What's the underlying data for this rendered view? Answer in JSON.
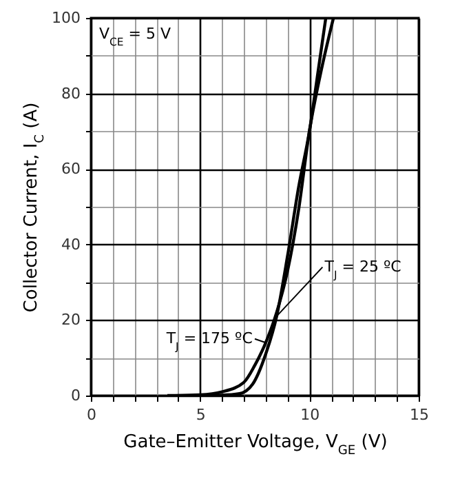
{
  "chart_data": {
    "type": "line",
    "xlabel": "Gate–Emitter Voltage, V$_{GE}$ (V)",
    "ylabel": "Collector Current, I$_{C}$ (A)",
    "series": [
      {
        "name": "T$_{J}$ = 175 ºC",
        "color": "#000000",
        "x": [
          3.5,
          5,
          6,
          7,
          7.5,
          8,
          8.5,
          9,
          9.5,
          10,
          10.5,
          11.1
        ],
        "values": [
          0,
          0.2,
          1,
          3.5,
          8,
          14,
          22,
          33,
          49,
          70,
          85,
          100
        ]
      },
      {
        "name": "T$_{J}$ = 25 ºC",
        "color": "#000000",
        "x": [
          4.9,
          6,
          6.8,
          7.4,
          8,
          8.5,
          9,
          9.5,
          10,
          10.4,
          10.75
        ],
        "values": [
          0,
          0.1,
          0.5,
          3,
          11,
          21,
          37,
          55,
          70,
          86,
          100
        ]
      }
    ],
    "annotations": [
      "V$_{CE}$ = 5 V"
    ],
    "xlim": [
      0,
      15
    ],
    "ylim": [
      0,
      100
    ],
    "xticks": [
      0,
      {
        "value": 1,
        "label": null
      },
      {
        "value": 2,
        "label": null
      },
      {
        "value": 3,
        "label": null
      },
      {
        "value": 4,
        "label": null
      },
      5,
      {
        "value": 6,
        "label": null
      },
      {
        "value": 7,
        "label": null
      },
      {
        "value": 8,
        "label": null
      },
      {
        "value": 9,
        "label": null
      },
      10,
      {
        "value": 11,
        "label": null
      },
      {
        "value": 12,
        "label": null
      },
      {
        "value": 13,
        "label": null
      },
      {
        "value": 14,
        "label": null
      },
      15
    ],
    "yticks": [
      0,
      {
        "value": 10,
        "label": null
      },
      20,
      {
        "value": 30,
        "label": null
      },
      40,
      {
        "value": 50,
        "label": null
      },
      60,
      {
        "value": 70,
        "label": null
      },
      80,
      {
        "value": 90,
        "label": null
      },
      100
    ],
    "grid": true,
    "line_style": "solid"
  }
}
